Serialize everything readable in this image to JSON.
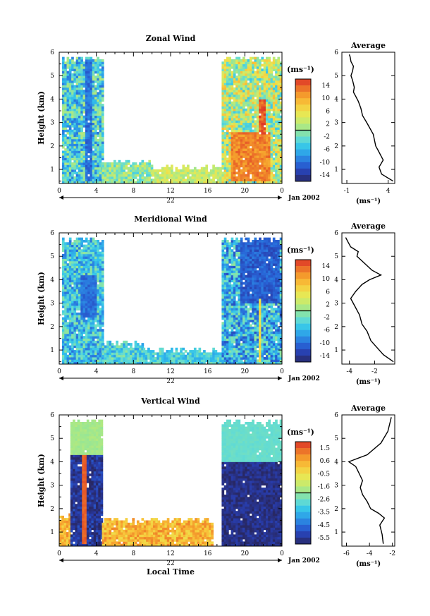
{
  "figure": {
    "date_label": "Jan 2002",
    "day_label": "22",
    "bottom_xlabel": "Local Time",
    "height_axis_label": "Height (km)",
    "unit_label": "(ms⁻¹)",
    "average_title": "Average"
  },
  "chart_data": [
    {
      "type": "heatmap",
      "title": "Zonal Wind",
      "xlabel": "",
      "ylabel": "Height (km)",
      "x_ticks": [
        "0",
        "4",
        "8",
        "12",
        "16",
        "20",
        "0"
      ],
      "y_ticks": [
        "1",
        "2",
        "3",
        "4",
        "5",
        "6"
      ],
      "xlim": [
        0,
        24
      ],
      "ylim": [
        0.4,
        6
      ],
      "colorbar": {
        "label": "(ms⁻¹)",
        "ticks": [
          "14",
          "10",
          "6",
          "2",
          "-2",
          "-6",
          "-10",
          "-14"
        ],
        "range": [
          -16,
          16
        ]
      },
      "coverage": [
        {
          "x_start": 0.3,
          "x_end": 4.6,
          "y_top": 5.8,
          "mean": -4,
          "var": 6
        },
        {
          "x_start": 4.6,
          "x_end": 10,
          "y_top": 1.4,
          "mean": 0,
          "var": 4
        },
        {
          "x_start": 10,
          "x_end": 17.5,
          "y_top": 1.15,
          "mean": 3,
          "var": 3
        },
        {
          "x_start": 17.5,
          "x_end": 24,
          "y_top": 5.8,
          "mean": 2,
          "var": 7
        }
      ],
      "features": [
        {
          "x_start": 18.5,
          "x_end": 22.5,
          "y_start": 0.5,
          "y_end": 2.6,
          "value": 12
        },
        {
          "x_start": 21.5,
          "x_end": 22.2,
          "y_start": 2.5,
          "y_end": 4.0,
          "value": 14
        },
        {
          "x_start": 2.8,
          "x_end": 3.3,
          "y_start": 0.5,
          "y_end": 5.6,
          "value": -10
        }
      ]
    },
    {
      "type": "line",
      "title": "Average",
      "xlabel": "(ms⁻¹)",
      "x_ticks": [
        "-1",
        "4"
      ],
      "x_tick_values": [
        -1,
        4
      ],
      "xlim": [
        -1.6,
        4.8
      ],
      "y_ticks": [
        "1",
        "2",
        "3",
        "4",
        "5",
        "6"
      ],
      "ylim": [
        0.4,
        6
      ],
      "x": [
        4.6,
        3.2,
        2.9,
        3.4,
        2.8,
        2.5,
        2.2,
        1.4,
        0.9,
        0.7,
        0.4,
        0.1,
        -0.2,
        -0.1,
        -0.3,
        -0.5,
        -0.3,
        -0.2,
        -0.5,
        -0.6,
        -0.7
      ],
      "y": [
        0.5,
        0.8,
        1.1,
        1.4,
        1.8,
        2.0,
        2.5,
        3.0,
        3.3,
        3.6,
        3.9,
        4.1,
        4.3,
        4.5,
        4.8,
        5.0,
        5.2,
        5.4,
        5.6,
        5.8,
        5.9
      ]
    },
    {
      "type": "heatmap",
      "title": "Meridional Wind",
      "xlabel": "",
      "ylabel": "Height (km)",
      "x_ticks": [
        "0",
        "4",
        "8",
        "12",
        "16",
        "20",
        "0"
      ],
      "y_ticks": [
        "1",
        "2",
        "3",
        "4",
        "5",
        "6"
      ],
      "xlim": [
        0,
        24
      ],
      "ylim": [
        0.4,
        6
      ],
      "colorbar": {
        "label": "(ms⁻¹)",
        "ticks": [
          "14",
          "10",
          "6",
          "2",
          "-2",
          "-6",
          "-10",
          "-14"
        ],
        "range": [
          -16,
          16
        ]
      },
      "coverage": [
        {
          "x_start": 0.3,
          "x_end": 4.6,
          "y_top": 5.8,
          "mean": -5,
          "var": 5
        },
        {
          "x_start": 4.6,
          "x_end": 9,
          "y_top": 1.4,
          "mean": -4,
          "var": 4
        },
        {
          "x_start": 9,
          "x_end": 17.5,
          "y_top": 1.1,
          "mean": -4,
          "var": 3
        },
        {
          "x_start": 17.5,
          "x_end": 24,
          "y_top": 5.8,
          "mean": -6,
          "var": 6
        }
      ],
      "features": [
        {
          "x_start": 2.3,
          "x_end": 3.9,
          "y_start": 2.4,
          "y_end": 4.2,
          "value": -10
        },
        {
          "x_start": 19.5,
          "x_end": 23.5,
          "y_start": 3.0,
          "y_end": 5.8,
          "value": -11
        },
        {
          "x_start": 21.3,
          "x_end": 21.7,
          "y_start": 0.5,
          "y_end": 3.2,
          "value": 6
        }
      ]
    },
    {
      "type": "line",
      "title": "Average",
      "xlabel": "(ms⁻¹)",
      "x_ticks": [
        "-4",
        "-2"
      ],
      "x_tick_values": [
        -4,
        -2
      ],
      "xlim": [
        -4.6,
        -0.4
      ],
      "y_ticks": [
        "1",
        "2",
        "3",
        "4",
        "5",
        "6"
      ],
      "ylim": [
        0.4,
        6
      ],
      "x": [
        -0.5,
        -1.3,
        -1.8,
        -2.3,
        -2.6,
        -3.0,
        -3.2,
        -3.6,
        -3.9,
        -3.5,
        -3.0,
        -2.4,
        -1.5,
        -2.2,
        -2.6,
        -3.0,
        -3.4,
        -3.3,
        -3.9,
        -4.1,
        -4.3
      ],
      "y": [
        0.5,
        0.8,
        1.1,
        1.4,
        1.8,
        2.1,
        2.5,
        2.9,
        3.2,
        3.5,
        3.8,
        4.0,
        4.2,
        4.4,
        4.6,
        4.8,
        5.0,
        5.2,
        5.4,
        5.6,
        5.8
      ]
    },
    {
      "type": "heatmap",
      "title": "Vertical Wind",
      "xlabel": "Local Time",
      "ylabel": "Height (km)",
      "x_ticks": [
        "0",
        "4",
        "8",
        "12",
        "16",
        "20",
        "0"
      ],
      "y_ticks": [
        "1",
        "2",
        "3",
        "4",
        "5",
        "6"
      ],
      "xlim": [
        0,
        24
      ],
      "ylim": [
        0.4,
        6
      ],
      "colorbar": {
        "label": "(ms⁻¹)",
        "ticks": [
          "1.5",
          "0.6",
          "-0.5",
          "-1.6",
          "-2.6",
          "-3.5",
          "-4.5",
          "-5.5"
        ],
        "range": [
          -6,
          2
        ]
      },
      "coverage": [
        {
          "x_start": 0,
          "x_end": 1.2,
          "y_top": 1.8,
          "mean": 0.3,
          "var": 0.7
        },
        {
          "x_start": 1.2,
          "x_end": 4.6,
          "y_top": 5.8,
          "mean": -5.5,
          "var": 0.6
        },
        {
          "x_start": 4.6,
          "x_end": 16.5,
          "y_top": 1.6,
          "mean": 0.3,
          "var": 0.8
        },
        {
          "x_start": 17.5,
          "x_end": 24,
          "y_top": 5.8,
          "mean": -5.7,
          "var": 0.4
        }
      ],
      "features": [
        {
          "x_start": 1.2,
          "x_end": 4.6,
          "y_start": 4.3,
          "y_end": 5.8,
          "value": -1.8
        },
        {
          "x_start": 17.5,
          "x_end": 24,
          "y_start": 4.0,
          "y_end": 5.8,
          "value": -2.6
        },
        {
          "x_start": 2.4,
          "x_end": 2.8,
          "y_start": 0.5,
          "y_end": 4.3,
          "value": 1.5
        }
      ]
    },
    {
      "type": "line",
      "title": "Average",
      "xlabel": "(ms⁻¹)",
      "x_ticks": [
        "-6",
        "-4",
        "-2"
      ],
      "x_tick_values": [
        -6,
        -4,
        -2
      ],
      "xlim": [
        -6.4,
        -1.8
      ],
      "y_ticks": [
        "1",
        "2",
        "3",
        "4",
        "5",
        "6"
      ],
      "ylim": [
        0.4,
        6
      ],
      "x": [
        -2.8,
        -2.9,
        -3.1,
        -2.7,
        -3.2,
        -3.9,
        -4.2,
        -4.6,
        -4.8,
        -4.6,
        -4.9,
        -5.2,
        -5.8,
        -4.2,
        -3.0,
        -2.4,
        -2.2,
        -2.1
      ],
      "y": [
        0.5,
        0.9,
        1.3,
        1.6,
        1.8,
        2.0,
        2.3,
        2.6,
        2.9,
        3.2,
        3.5,
        3.8,
        4.0,
        4.3,
        4.8,
        5.3,
        5.7,
        5.9
      ]
    }
  ]
}
